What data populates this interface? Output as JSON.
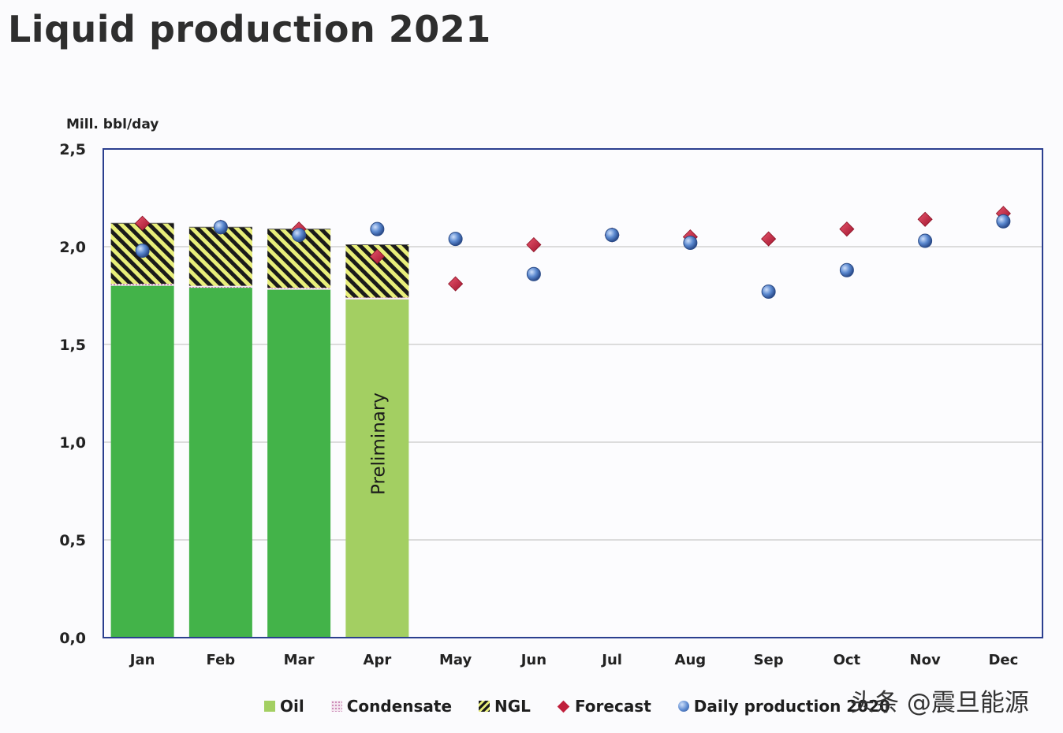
{
  "title": "Liquid production 2021",
  "watermark": "头条 @震旦能源",
  "chart_data": {
    "type": "bar",
    "title": "Liquid production 2021",
    "ylabel": "Mill. bbl/day",
    "ylim": [
      0,
      2.5
    ],
    "yticks": [
      "0,0",
      "0,5",
      "1,0",
      "1,5",
      "2,0",
      "2,5"
    ],
    "ytick_values": [
      0,
      0.5,
      1.0,
      1.5,
      2.0,
      2.5
    ],
    "grid": true,
    "categories": [
      "Jan",
      "Feb",
      "Mar",
      "Apr",
      "May",
      "Jun",
      "Jul",
      "Aug",
      "Sep",
      "Oct",
      "Nov",
      "Dec"
    ],
    "stacked_series": [
      {
        "name": "Oil",
        "values": [
          1.8,
          1.79,
          1.78,
          1.73,
          null,
          null,
          null,
          null,
          null,
          null,
          null,
          null
        ]
      },
      {
        "name": "Condensate",
        "values": [
          0.01,
          0.01,
          0.01,
          0.01,
          null,
          null,
          null,
          null,
          null,
          null,
          null,
          null
        ]
      },
      {
        "name": "NGL",
        "values": [
          0.31,
          0.3,
          0.3,
          0.27,
          null,
          null,
          null,
          null,
          null,
          null,
          null,
          null
        ]
      }
    ],
    "point_series": [
      {
        "name": "Forecast",
        "values": [
          2.12,
          2.1,
          2.09,
          1.95,
          1.81,
          2.01,
          2.06,
          2.05,
          2.04,
          2.09,
          2.14,
          2.17
        ]
      },
      {
        "name": "Daily production 2020",
        "values": [
          1.98,
          2.1,
          2.06,
          2.09,
          2.04,
          1.86,
          2.06,
          2.02,
          1.77,
          1.88,
          2.03,
          2.13
        ]
      }
    ],
    "annotations": [
      {
        "category": "Apr",
        "text": "Preliminary"
      }
    ],
    "legend": {
      "position": "bottom",
      "items": [
        "Oil",
        "Condensate",
        "NGL",
        "Forecast",
        "Daily production 2020"
      ]
    },
    "colors": {
      "oil": "#43b349",
      "oil_preliminary": "#a3cf62",
      "condensate": "#c77fb0",
      "ngl_stripe_dark": "#1a1a1a",
      "ngl_stripe_light": "#e8ee7a",
      "forecast": "#c01f3c",
      "daily_2020": "#5a88cf",
      "axis": "#2b3f8f",
      "grid": "#c8c8c8"
    }
  }
}
